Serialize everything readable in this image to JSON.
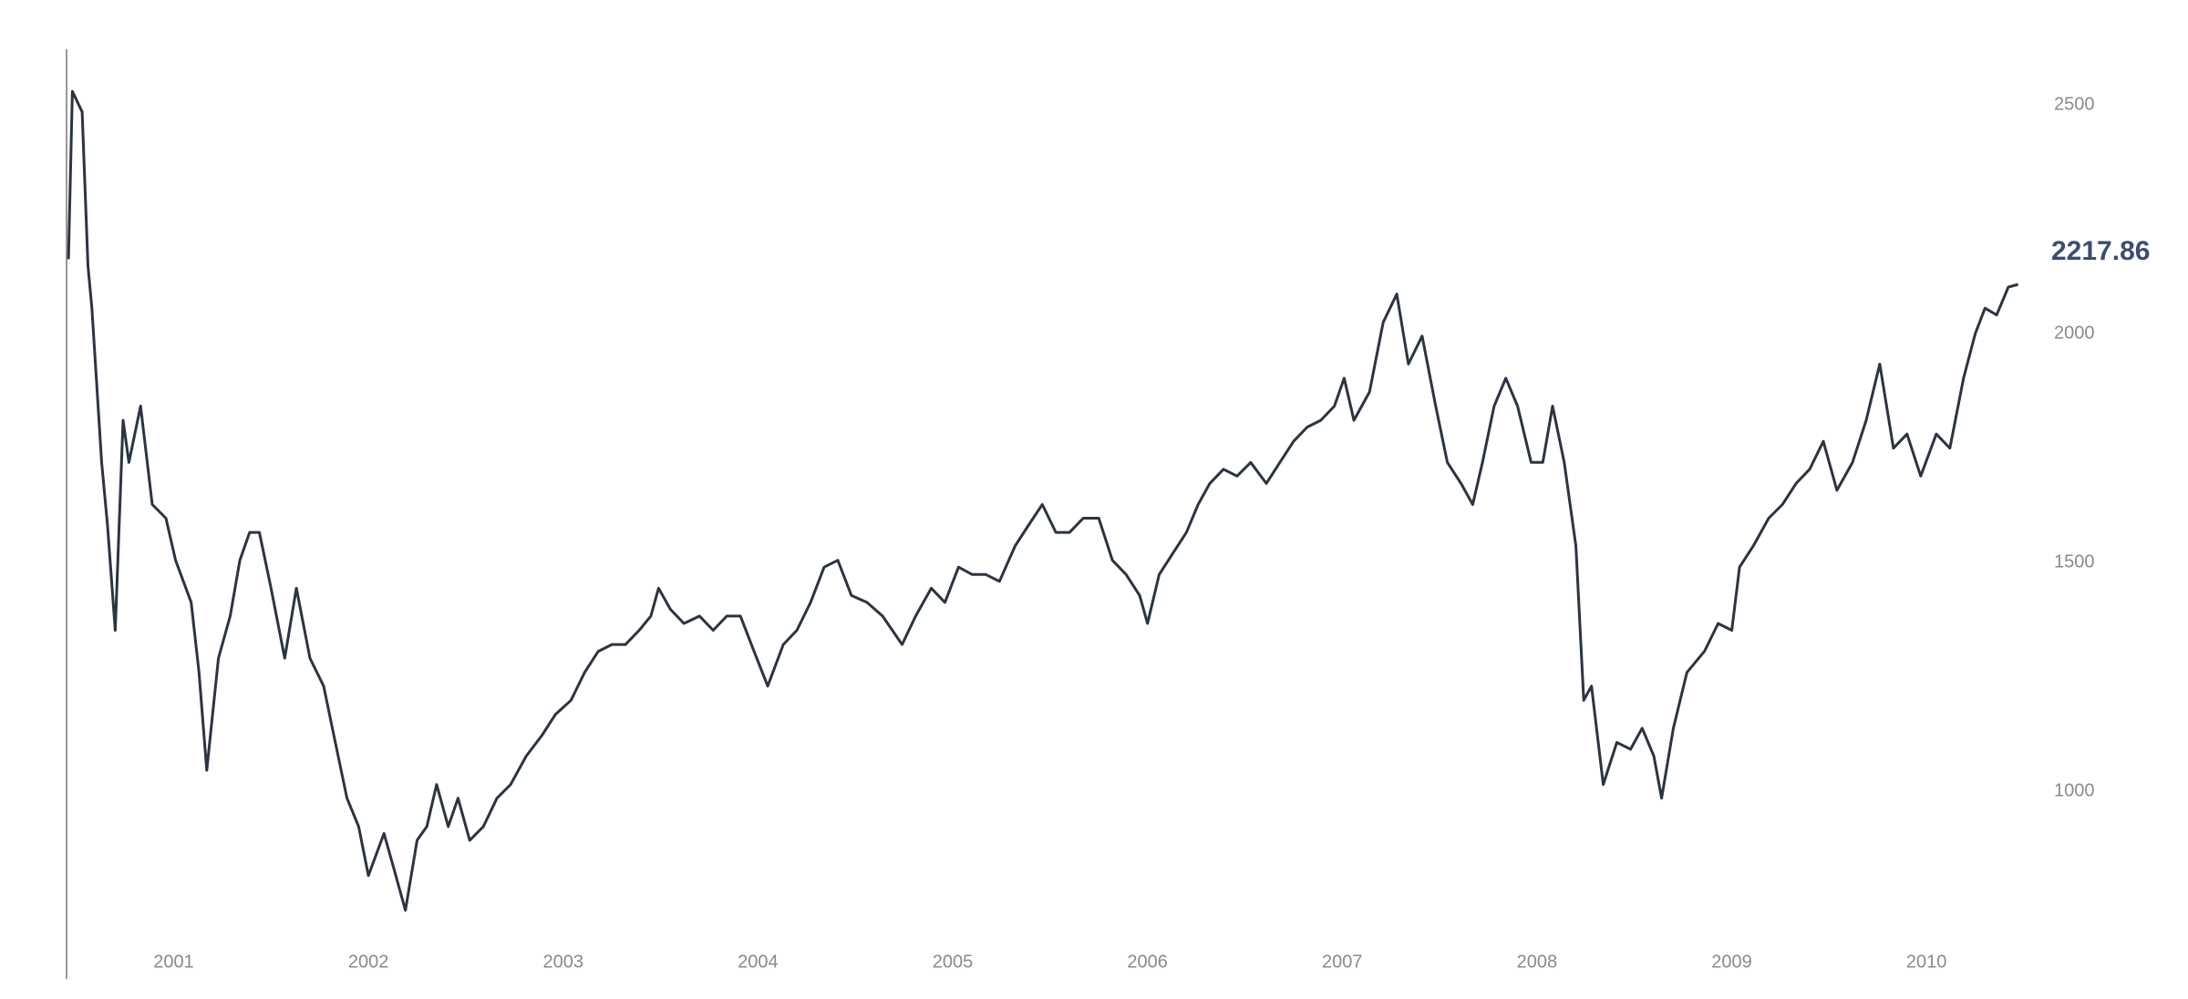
{
  "chart_data": {
    "type": "line",
    "annotation": "2217.86",
    "x": [
      2000.46,
      2000.48,
      2000.53,
      2000.56,
      2000.58,
      2000.63,
      2000.66,
      2000.7,
      2000.74,
      2000.77,
      2000.83,
      2000.89,
      2000.96,
      2001.01,
      2001.09,
      2001.13,
      2001.17,
      2001.23,
      2001.29,
      2001.34,
      2001.39,
      2001.44,
      2001.5,
      2001.57,
      2001.63,
      2001.7,
      2001.77,
      2001.83,
      2001.89,
      2001.95,
      2002.0,
      2002.08,
      2002.13,
      2002.19,
      2002.25,
      2002.3,
      2002.35,
      2002.41,
      2002.46,
      2002.52,
      2002.59,
      2002.66,
      2002.73,
      2002.81,
      2002.89,
      2002.96,
      2003.04,
      2003.11,
      2003.18,
      2003.25,
      2003.32,
      2003.39,
      2003.45,
      2003.49,
      2003.55,
      2003.62,
      2003.7,
      2003.77,
      2003.84,
      2003.91,
      2003.98,
      2004.05,
      2004.13,
      2004.2,
      2004.27,
      2004.34,
      2004.41,
      2004.48,
      2004.56,
      2004.64,
      2004.74,
      2004.81,
      2004.89,
      2004.96,
      2005.03,
      2005.1,
      2005.17,
      2005.24,
      2005.32,
      2005.39,
      2005.46,
      2005.53,
      2005.6,
      2005.67,
      2005.75,
      2005.82,
      2005.89,
      2005.96,
      2006.0,
      2006.06,
      2006.13,
      2006.2,
      2006.26,
      2006.32,
      2006.39,
      2006.46,
      2006.53,
      2006.61,
      2006.68,
      2006.75,
      2006.82,
      2006.89,
      2006.96,
      2007.01,
      2007.06,
      2007.14,
      2007.21,
      2007.28,
      2007.34,
      2007.41,
      2007.48,
      2007.54,
      2007.61,
      2007.67,
      2007.72,
      2007.78,
      2007.84,
      2007.9,
      2007.97,
      2008.03,
      2008.08,
      2008.14,
      2008.2,
      2008.24,
      2008.28,
      2008.34,
      2008.41,
      2008.48,
      2008.54,
      2008.6,
      2008.64,
      2008.7,
      2008.77,
      2008.86,
      2008.93,
      2009.0,
      2009.04,
      2009.11,
      2009.19,
      2009.26,
      2009.33,
      2009.4,
      2009.47,
      2009.54,
      2009.62,
      2009.69,
      2009.76,
      2009.83,
      2009.9,
      2009.97,
      2010.05,
      2010.12,
      2010.19,
      2010.25,
      2010.3,
      2010.36,
      2010.42,
      2010.47
    ],
    "values": [
      2163,
      2530,
      2485,
      2148,
      2056,
      1719,
      1582,
      1352,
      1811,
      1719,
      1842,
      1627,
      1597,
      1505,
      1413,
      1260,
      1046,
      1291,
      1383,
      1505,
      1566,
      1566,
      1444,
      1291,
      1444,
      1291,
      1230,
      1107,
      985,
      923,
      816,
      908,
      832,
      740,
      893,
      923,
      1015,
      923,
      985,
      893,
      923,
      985,
      1015,
      1077,
      1122,
      1168,
      1199,
      1260,
      1306,
      1321,
      1321,
      1352,
      1383,
      1444,
      1398,
      1367,
      1383,
      1352,
      1383,
      1383,
      1306,
      1230,
      1321,
      1352,
      1413,
      1490,
      1505,
      1428,
      1413,
      1383,
      1321,
      1383,
      1444,
      1413,
      1490,
      1474,
      1474,
      1459,
      1536,
      1582,
      1627,
      1566,
      1566,
      1597,
      1597,
      1505,
      1474,
      1428,
      1367,
      1474,
      1520,
      1566,
      1627,
      1673,
      1704,
      1689,
      1719,
      1673,
      1719,
      1765,
      1796,
      1811,
      1842,
      1903,
      1811,
      1873,
      2025,
      2087,
      1934,
      1995,
      1842,
      1719,
      1673,
      1627,
      1719,
      1842,
      1903,
      1842,
      1719,
      1719,
      1842,
      1719,
      1536,
      1199,
      1230,
      1015,
      1107,
      1092,
      1138,
      1077,
      985,
      1138,
      1260,
      1306,
      1367,
      1352,
      1490,
      1536,
      1597,
      1627,
      1673,
      1704,
      1765,
      1658,
      1719,
      1811,
      1934,
      1750,
      1781,
      1689,
      1781,
      1750,
      1903,
      2000,
      2056,
      2041,
      2102,
      2108
    ],
    "color": "#2b3442",
    "xlim": [
      2000.45,
      2010.5
    ],
    "xticks": [
      2001,
      2002,
      2003,
      2004,
      2005,
      2006,
      2007,
      2008,
      2009,
      2010
    ],
    "ylim": [
      590,
      2620
    ],
    "yticks": [
      1000,
      1500,
      2000,
      2500
    ],
    "grid": false
  }
}
